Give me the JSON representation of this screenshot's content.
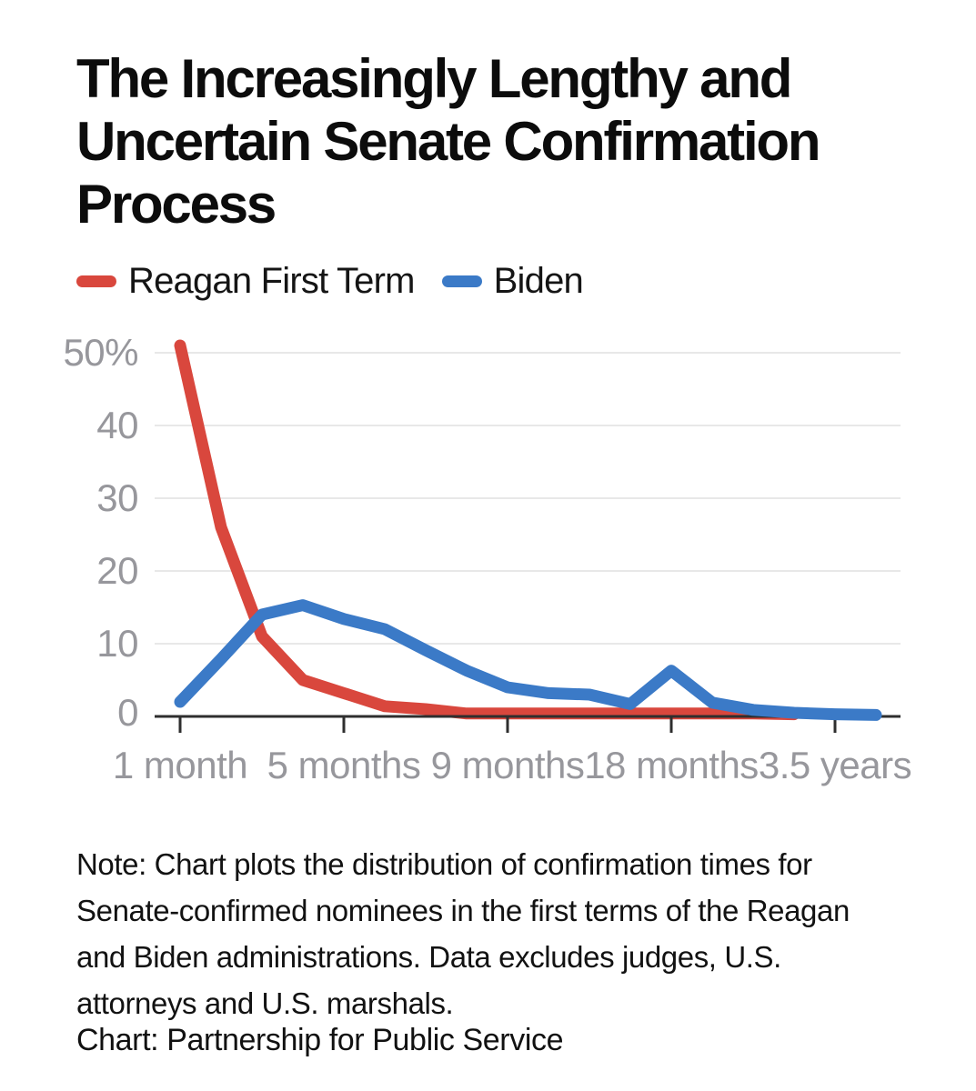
{
  "header": {
    "title_lines": [
      "The Increasingly Lengthy and",
      "Uncertain Senate Confirmation",
      "Process"
    ]
  },
  "chart_data": {
    "type": "line",
    "title": "The Increasingly Lengthy and Uncertain Senate Confirmation Process",
    "x_axis": {
      "tick_labels": [
        "1 month",
        "5 months",
        "9 months",
        "18 months",
        "3.5 years"
      ],
      "tick_indices": [
        0,
        4,
        8,
        12,
        16
      ]
    },
    "y_axis": {
      "unit": "%",
      "tick_labels": [
        "50%",
        "40",
        "30",
        "20",
        "10",
        "0"
      ],
      "tick_values": [
        50,
        40,
        30,
        20,
        10,
        0
      ],
      "ylim": [
        0,
        52
      ]
    },
    "grid": "horizontal-only",
    "legend_position": "top-left",
    "series": [
      {
        "name": "Reagan First Term",
        "color": "#d9473d",
        "values": [
          51,
          26,
          11,
          5,
          3.2,
          1.4,
          1.0,
          0.4,
          0.4,
          0.4,
          0.4,
          0.4,
          0.4,
          0.4,
          0.4,
          0.3
        ]
      },
      {
        "name": "Biden",
        "color": "#3b7ac7",
        "values": [
          2,
          7.9,
          14,
          15.3,
          13.4,
          12,
          9.1,
          6.3,
          4,
          3.2,
          3,
          1.7,
          6.3,
          1.9,
          0.9,
          0.5,
          0.3,
          0.2
        ]
      }
    ]
  },
  "footer": {
    "note_lines": [
      "Note: Chart plots the distribution of confirmation times for",
      "Senate-confirmed nominees in the first terms of the Reagan",
      "and Biden administrations. Data excludes judges, U.S.",
      "attorneys and U.S. marshals."
    ],
    "credit": "Chart: Partnership for Public Service"
  },
  "colors": {
    "background": "#ffffff",
    "grid": "#e8e8e8",
    "axis": "#2e2e2e",
    "axis_label": "#97979c",
    "text": "#111111"
  }
}
